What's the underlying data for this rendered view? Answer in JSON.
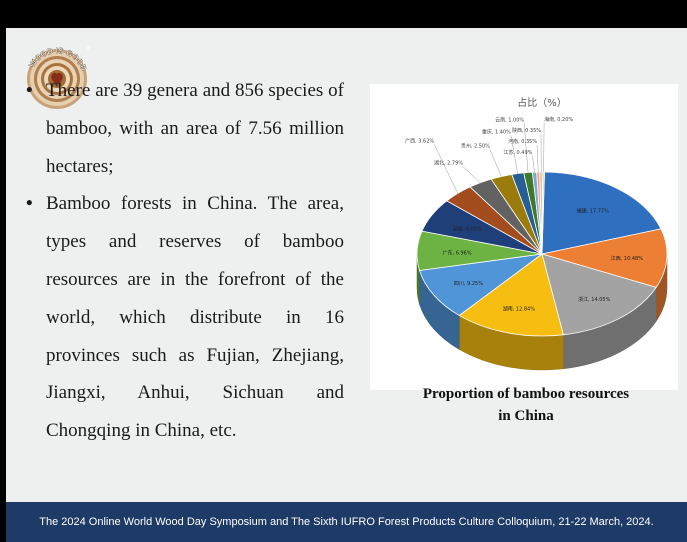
{
  "logo": {
    "text": "WOOD IS GOOD",
    "registered": "®"
  },
  "bullets": [
    {
      "marker": "•",
      "text": "There are 39 genera and 856 species of bamboo, with an area of 7.56 million hectares;"
    },
    {
      "marker": "•",
      "text": "Bamboo forests in China. The area, types and reserves of bamboo resources are in the forefront of the world, which distribute in 16 provinces such as Fujian, Zhejiang, Jiangxi, Anhui, Sichuan and Chongqing in China, etc."
    }
  ],
  "caption": {
    "line1": "Proportion of bamboo resources",
    "line2": "in China"
  },
  "footer": {
    "text": "The 2024 Online World Wood Day Symposium and The Sixth IUFRO Forest Products Culture Colloquium, 21-22 March, 2024."
  },
  "chart_data": {
    "type": "pie",
    "title": "占比（%）",
    "slices": [
      {
        "label": "福建",
        "value": 17.77,
        "value_label": "17.77%",
        "color": "#2e6fc0"
      },
      {
        "label": "江西",
        "value": 10.48,
        "value_label": "10.48%",
        "color": "#ec7f33"
      },
      {
        "label": "浙江",
        "value": 14.05,
        "value_label": "14.05%",
        "color": "#a3a3a3"
      },
      {
        "label": "湖南",
        "value": 12.84,
        "value_label": "12.84%",
        "color": "#f7be12"
      },
      {
        "label": "四川",
        "value": 9.25,
        "value_label": "9.25%",
        "color": "#4f95d8"
      },
      {
        "label": "广东",
        "value": 6.96,
        "value_label": "6.96%",
        "color": "#6cb343"
      },
      {
        "label": "安徽",
        "value": 6.05,
        "value_label": "6.05%",
        "color": "#1f3f7a"
      },
      {
        "label": "广西",
        "value": 3.62,
        "value_label": "3.62%",
        "color": "#a34c1e"
      },
      {
        "label": "湖北",
        "value": 2.79,
        "value_label": "2.79%",
        "color": "#626262"
      },
      {
        "label": "贵州",
        "value": 2.5,
        "value_label": "2.50%",
        "color": "#9a7b0c"
      },
      {
        "label": "重庆",
        "value": 1.4,
        "value_label": "1.40%",
        "color": "#275f95"
      },
      {
        "label": "云南",
        "value": 1.0,
        "value_label": "1.00%",
        "color": "#3f7a2a"
      },
      {
        "label": "江苏",
        "value": 0.49,
        "value_label": "0.49%",
        "color": "#7da6dc"
      },
      {
        "label": "河南",
        "value": 0.35,
        "value_label": "0.35%",
        "color": "#f3a77a"
      },
      {
        "label": "陕西",
        "value": 0.35,
        "value_label": "0.35%",
        "color": "#c8c8c8"
      },
      {
        "label": "海南",
        "value": 0.2,
        "value_label": "0.20%",
        "color": "#f9d77a"
      }
    ]
  }
}
